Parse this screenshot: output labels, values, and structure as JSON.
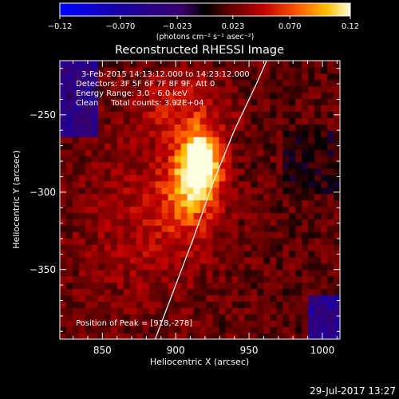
{
  "chart_data": {
    "type": "heatmap",
    "title": "Reconstructed RHESSI Image",
    "xlabel": "Heliocentric X (arcsec)",
    "ylabel": "Heliocentric Y (arcsec)",
    "xlim": [
      821,
      1012
    ],
    "ylim": [
      -395,
      -215
    ],
    "xticks": [
      850,
      900,
      950,
      1000
    ],
    "yticks": [
      -250,
      -300,
      -350
    ],
    "xtick_labels": [
      "850",
      "900",
      "950",
      "1000"
    ],
    "ytick_labels": [
      "−250",
      "−300",
      "−350"
    ],
    "colorbar": {
      "range": [
        -0.12,
        0.12
      ],
      "ticks": [
        -0.12,
        -0.07,
        -0.023,
        0.023,
        0.07,
        0.12
      ],
      "tick_labels": [
        "−0.12",
        "−0.070",
        "−0.023",
        "0.023",
        "0.070",
        "0.12"
      ],
      "unit_label": "(photons cm⁻² s⁻¹ asec⁻²)"
    },
    "annotations": [
      "3-Feb-2015 14:13:12.000 to 14:23:12.000",
      "Detectors: 3F 5F 6F 7F 8F 9F, Att 0",
      "Energy Range: 3.0 - 6.0 keV",
      "Clean     Total counts: 3.92E+04"
    ],
    "peak_label": "Position of Peak = [918,-278]",
    "peak": [
      918,
      -278
    ],
    "limb_curve": [
      [
        886,
        -395
      ],
      [
        900,
        -360
      ],
      [
        912,
        -330
      ],
      [
        925,
        -295
      ],
      [
        940,
        -260
      ],
      [
        955,
        -230
      ],
      [
        962,
        -215
      ]
    ],
    "sources": [
      {
        "x": 917,
        "y": -281,
        "amp": 0.118,
        "sx": 9,
        "sy": 14
      },
      {
        "x": 908,
        "y": -300,
        "amp": 0.05,
        "sx": 14,
        "sy": 20
      },
      {
        "x": 905,
        "y": -245,
        "amp": 0.032,
        "sx": 22,
        "sy": 16
      },
      {
        "x": 880,
        "y": -320,
        "amp": 0.022,
        "sx": 35,
        "sy": 40
      }
    ],
    "background_level": 0.018
  },
  "footer": {
    "timestamp": "29-Jul-2017 13:27"
  },
  "colors": {
    "limb": "#ffffff",
    "axis": "#ffffff"
  }
}
